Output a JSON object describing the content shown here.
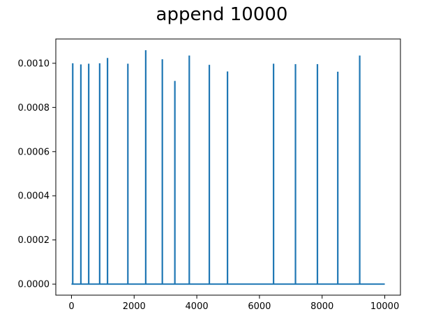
{
  "chart_data": {
    "type": "line",
    "title": "append 10000",
    "xlabel": "",
    "ylabel": "",
    "xlim": [
      -500,
      10500
    ],
    "ylim": [
      -5e-05,
      0.00111
    ],
    "x_ticks": [
      0,
      2000,
      4000,
      6000,
      8000,
      10000
    ],
    "x_tick_labels": [
      "0",
      "2000",
      "4000",
      "6000",
      "8000",
      "10000"
    ],
    "y_ticks": [
      0,
      0.0002,
      0.0004,
      0.0006,
      0.0008,
      0.001
    ],
    "y_tick_labels": [
      "0.0000",
      "0.0002",
      "0.0004",
      "0.0006",
      "0.0008",
      "0.0010"
    ],
    "grid": false,
    "legend": "none",
    "baseline": 0,
    "x_max": 10000,
    "series": [
      {
        "color": "#1f77b4",
        "spikes": [
          {
            "x": 40,
            "y": 0.001
          },
          {
            "x": 300,
            "y": 0.000995
          },
          {
            "x": 550,
            "y": 0.000998
          },
          {
            "x": 900,
            "y": 0.001
          },
          {
            "x": 1150,
            "y": 0.001024
          },
          {
            "x": 1800,
            "y": 0.000998
          },
          {
            "x": 2370,
            "y": 0.001059
          },
          {
            "x": 2900,
            "y": 0.001018
          },
          {
            "x": 3300,
            "y": 0.00092
          },
          {
            "x": 3760,
            "y": 0.001035
          },
          {
            "x": 4400,
            "y": 0.000993
          },
          {
            "x": 4980,
            "y": 0.000963
          },
          {
            "x": 6450,
            "y": 0.000998
          },
          {
            "x": 7150,
            "y": 0.000996
          },
          {
            "x": 7850,
            "y": 0.000996
          },
          {
            "x": 8500,
            "y": 0.000962
          },
          {
            "x": 9200,
            "y": 0.001035
          }
        ]
      }
    ]
  }
}
